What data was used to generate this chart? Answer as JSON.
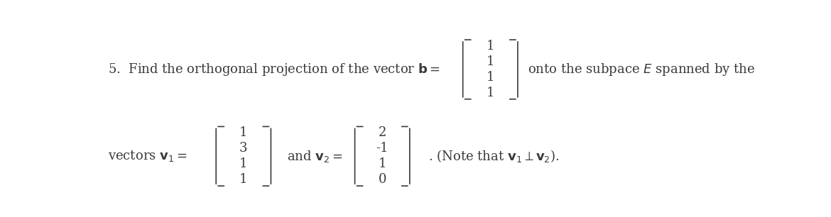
{
  "background_color": "#ffffff",
  "figsize": [
    11.7,
    3.06
  ],
  "dpi": 100,
  "line1_text": "5.  Find the orthogonal projection of the vector $\\mathbf{b} = $ ",
  "line1_suffix": "onto the subpace $E$ spanned by the",
  "b_vector": [
    "1",
    "1",
    "1",
    "1"
  ],
  "line2_prefix": "vectors $\\mathbf{v}_1 = $",
  "line2_mid": "and $\\mathbf{v}_2 = $",
  "line2_suffix": ". (Note that $\\mathbf{v}_1 \\perp \\mathbf{v}_2$).",
  "v1_vector": [
    "1",
    "3",
    "1",
    "1"
  ],
  "v2_vector": [
    "2",
    "-1",
    "1",
    "0"
  ],
  "text_color": "#3a3a3a",
  "font_size": 13
}
